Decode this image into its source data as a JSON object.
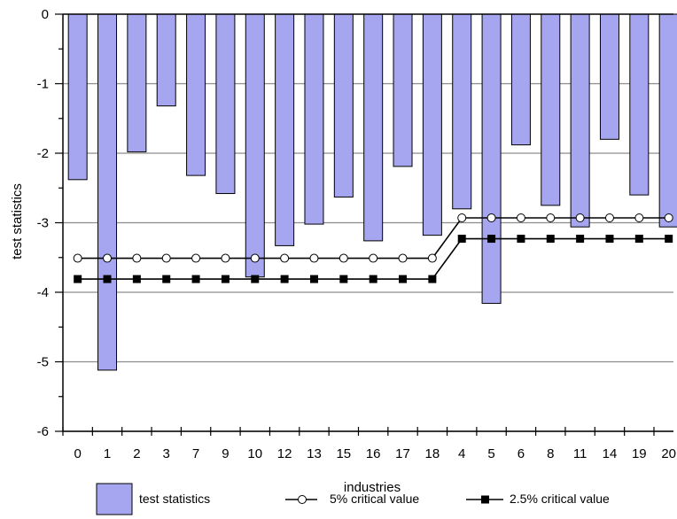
{
  "chart_data": {
    "type": "bar",
    "title": "",
    "xlabel": "industries",
    "ylabel": "test statistics",
    "ylim": [
      -6,
      0
    ],
    "yticks": [
      "0",
      "-1",
      "-2",
      "-3",
      "-4",
      "-5",
      "-6"
    ],
    "grid": true,
    "legend_position": "bottom",
    "categories": [
      "0",
      "1",
      "2",
      "3",
      "7",
      "9",
      "10",
      "12",
      "13",
      "15",
      "16",
      "17",
      "18",
      "4",
      "5",
      "6",
      "8",
      "11",
      "14",
      "19",
      "20"
    ],
    "series": [
      {
        "name": "test statistics",
        "kind": "bar",
        "color": "#a6a6f0",
        "values": [
          -2.38,
          -5.12,
          -1.98,
          -1.32,
          -2.32,
          -2.58,
          -3.78,
          -3.33,
          -3.02,
          -2.63,
          -3.26,
          -2.19,
          -3.18,
          -2.8,
          -4.16,
          -1.88,
          -2.75,
          -3.06,
          -1.8,
          -2.6,
          -3.06
        ]
      },
      {
        "name": "5% critical value",
        "kind": "line",
        "marker": "open-circle",
        "color": "#000000",
        "values": [
          -3.51,
          -3.51,
          -3.51,
          -3.51,
          -3.51,
          -3.51,
          -3.51,
          -3.51,
          -3.51,
          -3.51,
          -3.51,
          -3.51,
          -3.51,
          -2.93,
          -2.93,
          -2.93,
          -2.93,
          -2.93,
          -2.93,
          -2.93,
          -2.93
        ]
      },
      {
        "name": "2.5% critical value",
        "kind": "line",
        "marker": "filled-square",
        "color": "#000000",
        "values": [
          -3.81,
          -3.81,
          -3.81,
          -3.81,
          -3.81,
          -3.81,
          -3.81,
          -3.81,
          -3.81,
          -3.81,
          -3.81,
          -3.81,
          -3.81,
          -3.23,
          -3.23,
          -3.23,
          -3.23,
          -3.23,
          -3.23,
          -3.23,
          -3.23
        ]
      }
    ]
  }
}
